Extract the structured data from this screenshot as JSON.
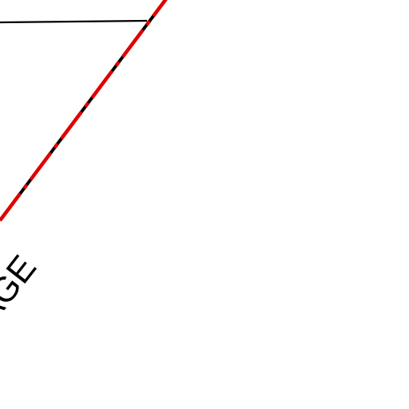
{
  "map": {
    "background_color": "#ffffff",
    "boundary": {
      "dash_color": "#e00000",
      "line_color": "#000000"
    },
    "road": {
      "line_color": "#000000"
    },
    "label": {
      "text": "AGE",
      "color": "#000000"
    }
  }
}
